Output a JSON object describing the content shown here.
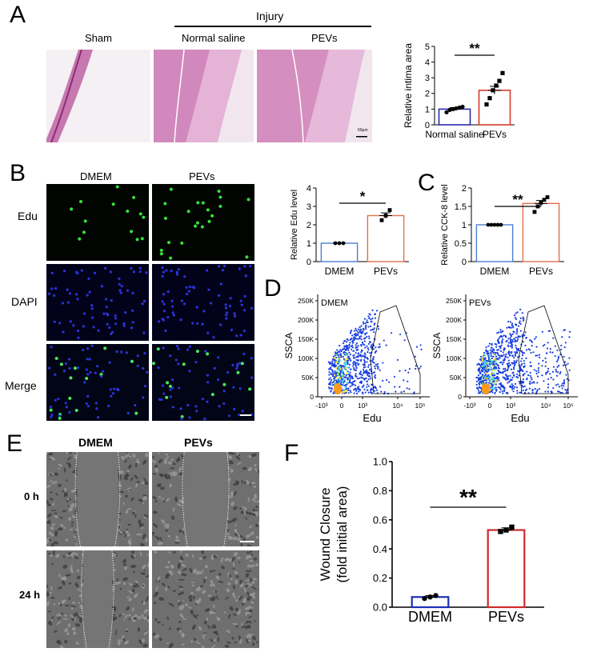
{
  "panels": {
    "A": {
      "letter": "A",
      "group_label": "Injury",
      "columns": [
        "Sham",
        "Normal saline",
        "PEVs"
      ],
      "scale_bar_text": "50μm"
    },
    "B": {
      "letter": "B",
      "columns": [
        "DMEM",
        "PEVs"
      ],
      "rows": [
        "Edu",
        "DAPI",
        "Merge"
      ]
    },
    "C": {
      "letter": "C"
    },
    "D": {
      "letter": "D",
      "plots": [
        {
          "title": "DMEM",
          "ylabel": "SSCA",
          "xlabel": "Edu"
        },
        {
          "title": "PEVs",
          "ylabel": "SSCA",
          "xlabel": "Edu"
        }
      ],
      "yticks": [
        "250K",
        "200K",
        "150K",
        "100K",
        "50K",
        "0"
      ],
      "xticks": [
        "-10³",
        "0",
        "10³",
        "10⁴",
        "10⁵"
      ]
    },
    "E": {
      "letter": "E",
      "columns": [
        "DMEM",
        "PEVs"
      ],
      "rows": [
        "0 h",
        "24 h"
      ]
    },
    "F": {
      "letter": "F"
    }
  },
  "chart_data": [
    {
      "id": "A-intima",
      "type": "bar",
      "categories": [
        "Normal saline",
        "PEVs"
      ],
      "values": [
        1.0,
        2.2
      ],
      "errors": [
        0.1,
        0.25
      ],
      "points": [
        [
          0.8,
          0.95,
          1.0,
          1.05,
          1.1,
          1.15
        ],
        [
          1.3,
          1.7,
          2.2,
          2.5,
          2.8,
          3.3
        ]
      ],
      "ylabel": "Relative intima area",
      "ylim": [
        0,
        5
      ],
      "yticks": [
        0,
        1,
        2,
        3,
        4,
        5
      ],
      "significance": "**",
      "colors": [
        "#2a2ab4",
        "#d93a2b"
      ]
    },
    {
      "id": "B-edu",
      "type": "bar",
      "categories": [
        "DMEM",
        "PEVs"
      ],
      "values": [
        1.0,
        2.5
      ],
      "errors": [
        0.0,
        0.15
      ],
      "points": [
        [
          1.0,
          1.0,
          1.0
        ],
        [
          2.25,
          2.5,
          2.8
        ]
      ],
      "ylabel": "Relative Edu level",
      "ylim": [
        0,
        4
      ],
      "yticks": [
        0,
        1,
        2,
        3,
        4
      ],
      "significance": "*",
      "colors": [
        "#4a7fd4",
        "#e0704a"
      ]
    },
    {
      "id": "C-cck8",
      "type": "bar",
      "categories": [
        "DMEM",
        "PEVs"
      ],
      "values": [
        1.0,
        1.58
      ],
      "errors": [
        0.0,
        0.08
      ],
      "points": [
        [
          1.0,
          1.0,
          1.0,
          1.0,
          1.0
        ],
        [
          1.35,
          1.5,
          1.6,
          1.68,
          1.75
        ]
      ],
      "ylabel": "Relative CCK-8 level",
      "ylim": [
        0,
        2.0
      ],
      "yticks": [
        0,
        0.5,
        1.0,
        1.5,
        2.0
      ],
      "significance": "**",
      "colors": [
        "#4a7fd4",
        "#e0704a"
      ]
    },
    {
      "id": "F-wound",
      "type": "bar",
      "categories": [
        "DMEM",
        "PEVs"
      ],
      "values": [
        0.07,
        0.53
      ],
      "errors": [
        0.01,
        0.015
      ],
      "points": [
        [
          0.06,
          0.07,
          0.08
        ],
        [
          0.52,
          0.53,
          0.55
        ]
      ],
      "ylabel": "Wound Closure",
      "ylabel2": "(fold initial area)",
      "ylim": [
        0,
        1.0
      ],
      "yticks": [
        "0.0",
        "0.2",
        "0.4",
        "0.6",
        "0.8",
        "1.0"
      ],
      "significance": "**",
      "colors": [
        "#1e2fb8",
        "#cf2a2a"
      ]
    }
  ]
}
